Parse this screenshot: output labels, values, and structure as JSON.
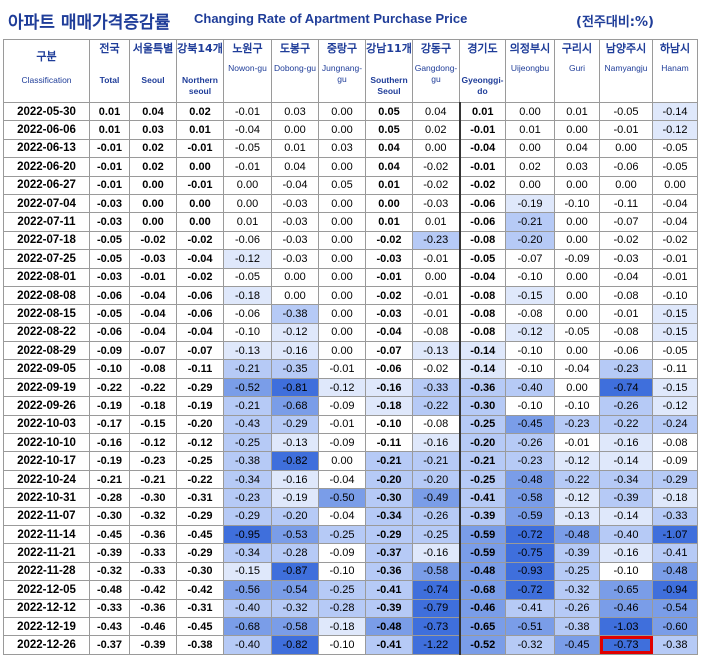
{
  "title": {
    "korean": "아파트 매매가격증감률",
    "english": "Changing Rate of Apartment Purchase Price",
    "unit": "(전주대비:%)"
  },
  "columns": [
    {
      "ko": "구분",
      "en": "Classification"
    },
    {
      "ko": "전국",
      "en": "Total"
    },
    {
      "ko": "서울특별",
      "en": "Seoul"
    },
    {
      "ko": "강북14개",
      "en": "Northern seoul"
    },
    {
      "ko": "노원구",
      "en": "Nowon-gu"
    },
    {
      "ko": "도봉구",
      "en": "Dobong-gu"
    },
    {
      "ko": "중랑구",
      "en": "Jungnang-gu"
    },
    {
      "ko": "강남11개",
      "en": "Southern Seoul"
    },
    {
      "ko": "강동구",
      "en": "Gangdong-gu"
    },
    {
      "ko": "경기도",
      "en": "Gyeonggi-do"
    },
    {
      "ko": "의정부시",
      "en": "Uijeongbu"
    },
    {
      "ko": "구리시",
      "en": "Guri"
    },
    {
      "ko": "남양주시",
      "en": "Namyangju"
    },
    {
      "ko": "하남시",
      "en": "Hanam"
    }
  ],
  "rows": [
    {
      "date": "2022-05-30",
      "values": [
        "0.01",
        "0.04",
        "0.02",
        "-0.01",
        "0.03",
        "0.00",
        "0.05",
        "0.04",
        "0.01",
        "0.00",
        "0.01",
        "-0.05",
        "-0.14"
      ]
    },
    {
      "date": "2022-06-06",
      "values": [
        "0.01",
        "0.03",
        "0.01",
        "-0.04",
        "0.00",
        "0.00",
        "0.05",
        "0.02",
        "-0.01",
        "0.01",
        "0.00",
        "-0.01",
        "-0.12"
      ]
    },
    {
      "date": "2022-06-13",
      "values": [
        "-0.01",
        "0.02",
        "-0.01",
        "-0.05",
        "0.01",
        "0.03",
        "0.04",
        "0.00",
        "-0.04",
        "0.00",
        "0.04",
        "0.00",
        "-0.05"
      ]
    },
    {
      "date": "2022-06-20",
      "values": [
        "-0.01",
        "0.02",
        "0.00",
        "-0.01",
        "0.04",
        "0.00",
        "0.04",
        "-0.02",
        "-0.01",
        "0.02",
        "0.03",
        "-0.06",
        "-0.05"
      ]
    },
    {
      "date": "2022-06-27",
      "values": [
        "-0.01",
        "0.00",
        "-0.01",
        "0.00",
        "-0.04",
        "0.05",
        "0.01",
        "-0.02",
        "-0.02",
        "0.00",
        "0.00",
        "0.00",
        "0.00"
      ]
    },
    {
      "date": "2022-07-04",
      "values": [
        "-0.03",
        "0.00",
        "0.00",
        "0.00",
        "-0.03",
        "0.00",
        "0.00",
        "-0.03",
        "-0.06",
        "-0.19",
        "-0.10",
        "-0.11",
        "-0.04"
      ]
    },
    {
      "date": "2022-07-11",
      "values": [
        "-0.03",
        "0.00",
        "0.00",
        "0.01",
        "-0.03",
        "0.00",
        "0.01",
        "0.01",
        "-0.06",
        "-0.21",
        "0.00",
        "-0.07",
        "-0.04"
      ]
    },
    {
      "date": "2022-07-18",
      "values": [
        "-0.05",
        "-0.02",
        "-0.02",
        "-0.06",
        "-0.03",
        "0.00",
        "-0.02",
        "-0.23",
        "-0.08",
        "-0.20",
        "0.00",
        "-0.02",
        "-0.02"
      ]
    },
    {
      "date": "2022-07-25",
      "values": [
        "-0.05",
        "-0.03",
        "-0.04",
        "-0.12",
        "-0.03",
        "0.00",
        "-0.03",
        "-0.01",
        "-0.05",
        "-0.07",
        "-0.09",
        "-0.03",
        "-0.01"
      ]
    },
    {
      "date": "2022-08-01",
      "values": [
        "-0.03",
        "-0.01",
        "-0.02",
        "-0.05",
        "0.00",
        "0.00",
        "-0.01",
        "0.00",
        "-0.04",
        "-0.10",
        "0.00",
        "-0.04",
        "-0.01"
      ]
    },
    {
      "date": "2022-08-08",
      "values": [
        "-0.06",
        "-0.04",
        "-0.06",
        "-0.18",
        "0.00",
        "0.00",
        "-0.02",
        "-0.01",
        "-0.08",
        "-0.15",
        "0.00",
        "-0.08",
        "-0.10"
      ]
    },
    {
      "date": "2022-08-15",
      "values": [
        "-0.05",
        "-0.04",
        "-0.06",
        "-0.06",
        "-0.38",
        "0.00",
        "-0.03",
        "-0.01",
        "-0.08",
        "-0.08",
        "0.00",
        "-0.01",
        "-0.15"
      ]
    },
    {
      "date": "2022-08-22",
      "values": [
        "-0.06",
        "-0.04",
        "-0.04",
        "-0.10",
        "-0.12",
        "0.00",
        "-0.04",
        "-0.08",
        "-0.08",
        "-0.12",
        "-0.05",
        "-0.08",
        "-0.15"
      ]
    },
    {
      "date": "2022-08-29",
      "values": [
        "-0.09",
        "-0.07",
        "-0.07",
        "-0.13",
        "-0.16",
        "0.00",
        "-0.07",
        "-0.13",
        "-0.14",
        "-0.10",
        "0.00",
        "-0.06",
        "-0.05"
      ]
    },
    {
      "date": "2022-09-05",
      "values": [
        "-0.10",
        "-0.08",
        "-0.11",
        "-0.21",
        "-0.35",
        "-0.01",
        "-0.06",
        "-0.02",
        "-0.14",
        "-0.10",
        "-0.04",
        "-0.23",
        "-0.11"
      ]
    },
    {
      "date": "2022-09-19",
      "values": [
        "-0.22",
        "-0.22",
        "-0.29",
        "-0.52",
        "-0.81",
        "-0.12",
        "-0.16",
        "-0.33",
        "-0.36",
        "-0.40",
        "0.00",
        "-0.74",
        "-0.15"
      ]
    },
    {
      "date": "2022-09-26",
      "values": [
        "-0.19",
        "-0.18",
        "-0.19",
        "-0.21",
        "-0.68",
        "-0.09",
        "-0.18",
        "-0.22",
        "-0.30",
        "-0.10",
        "-0.10",
        "-0.26",
        "-0.12"
      ]
    },
    {
      "date": "2022-10-03",
      "values": [
        "-0.17",
        "-0.15",
        "-0.20",
        "-0.43",
        "-0.29",
        "-0.01",
        "-0.10",
        "-0.08",
        "-0.25",
        "-0.45",
        "-0.23",
        "-0.22",
        "-0.24"
      ]
    },
    {
      "date": "2022-10-10",
      "values": [
        "-0.16",
        "-0.12",
        "-0.12",
        "-0.25",
        "-0.13",
        "-0.09",
        "-0.11",
        "-0.16",
        "-0.20",
        "-0.26",
        "-0.01",
        "-0.16",
        "-0.08"
      ]
    },
    {
      "date": "2022-10-17",
      "values": [
        "-0.19",
        "-0.23",
        "-0.25",
        "-0.38",
        "-0.82",
        "0.00",
        "-0.21",
        "-0.21",
        "-0.21",
        "-0.23",
        "-0.12",
        "-0.14",
        "-0.09"
      ]
    },
    {
      "date": "2022-10-24",
      "values": [
        "-0.21",
        "-0.21",
        "-0.22",
        "-0.34",
        "-0.16",
        "-0.04",
        "-0.20",
        "-0.20",
        "-0.25",
        "-0.48",
        "-0.22",
        "-0.34",
        "-0.29"
      ]
    },
    {
      "date": "2022-10-31",
      "values": [
        "-0.28",
        "-0.30",
        "-0.31",
        "-0.23",
        "-0.19",
        "-0.50",
        "-0.30",
        "-0.49",
        "-0.41",
        "-0.58",
        "-0.12",
        "-0.39",
        "-0.18"
      ]
    },
    {
      "date": "2022-11-07",
      "values": [
        "-0.30",
        "-0.32",
        "-0.29",
        "-0.29",
        "-0.20",
        "-0.04",
        "-0.34",
        "-0.26",
        "-0.39",
        "-0.59",
        "-0.13",
        "-0.14",
        "-0.33"
      ]
    },
    {
      "date": "2022-11-14",
      "values": [
        "-0.45",
        "-0.36",
        "-0.45",
        "-0.95",
        "-0.53",
        "-0.25",
        "-0.29",
        "-0.25",
        "-0.59",
        "-0.72",
        "-0.48",
        "-0.40",
        "-1.07"
      ]
    },
    {
      "date": "2022-11-21",
      "values": [
        "-0.39",
        "-0.33",
        "-0.29",
        "-0.34",
        "-0.28",
        "-0.09",
        "-0.37",
        "-0.16",
        "-0.59",
        "-0.75",
        "-0.39",
        "-0.16",
        "-0.41"
      ]
    },
    {
      "date": "2022-11-28",
      "values": [
        "-0.32",
        "-0.33",
        "-0.30",
        "-0.15",
        "-0.87",
        "-0.10",
        "-0.36",
        "-0.58",
        "-0.48",
        "-0.93",
        "-0.25",
        "-0.10",
        "-0.48"
      ]
    },
    {
      "date": "2022-12-05",
      "values": [
        "-0.48",
        "-0.42",
        "-0.42",
        "-0.56",
        "-0.54",
        "-0.25",
        "-0.41",
        "-0.74",
        "-0.68",
        "-0.72",
        "-0.32",
        "-0.65",
        "-0.94"
      ]
    },
    {
      "date": "2022-12-12",
      "values": [
        "-0.33",
        "-0.36",
        "-0.31",
        "-0.40",
        "-0.32",
        "-0.28",
        "-0.39",
        "-0.79",
        "-0.46",
        "-0.41",
        "-0.26",
        "-0.46",
        "-0.54"
      ]
    },
    {
      "date": "2022-12-19",
      "values": [
        "-0.43",
        "-0.46",
        "-0.45",
        "-0.68",
        "-0.58",
        "-0.18",
        "-0.48",
        "-0.73",
        "-0.65",
        "-0.51",
        "-0.38",
        "-1.03",
        "-0.60"
      ]
    },
    {
      "date": "2022-12-26",
      "values": [
        "-0.37",
        "-0.39",
        "-0.38",
        "-0.40",
        "-0.82",
        "-0.10",
        "-0.41",
        "-1.22",
        "-0.52",
        "-0.32",
        "-0.45",
        "-0.73",
        "-0.38"
      ]
    }
  ],
  "highlighted_cell": {
    "date": "2022-12-26",
    "column": "남양주시",
    "value": "-0.73"
  },
  "colors": {
    "heading": "#1f3d99",
    "highlight_border": "#e00000",
    "scale_light": "#dfe8fb",
    "scale_dark": "#3f6fdc"
  }
}
